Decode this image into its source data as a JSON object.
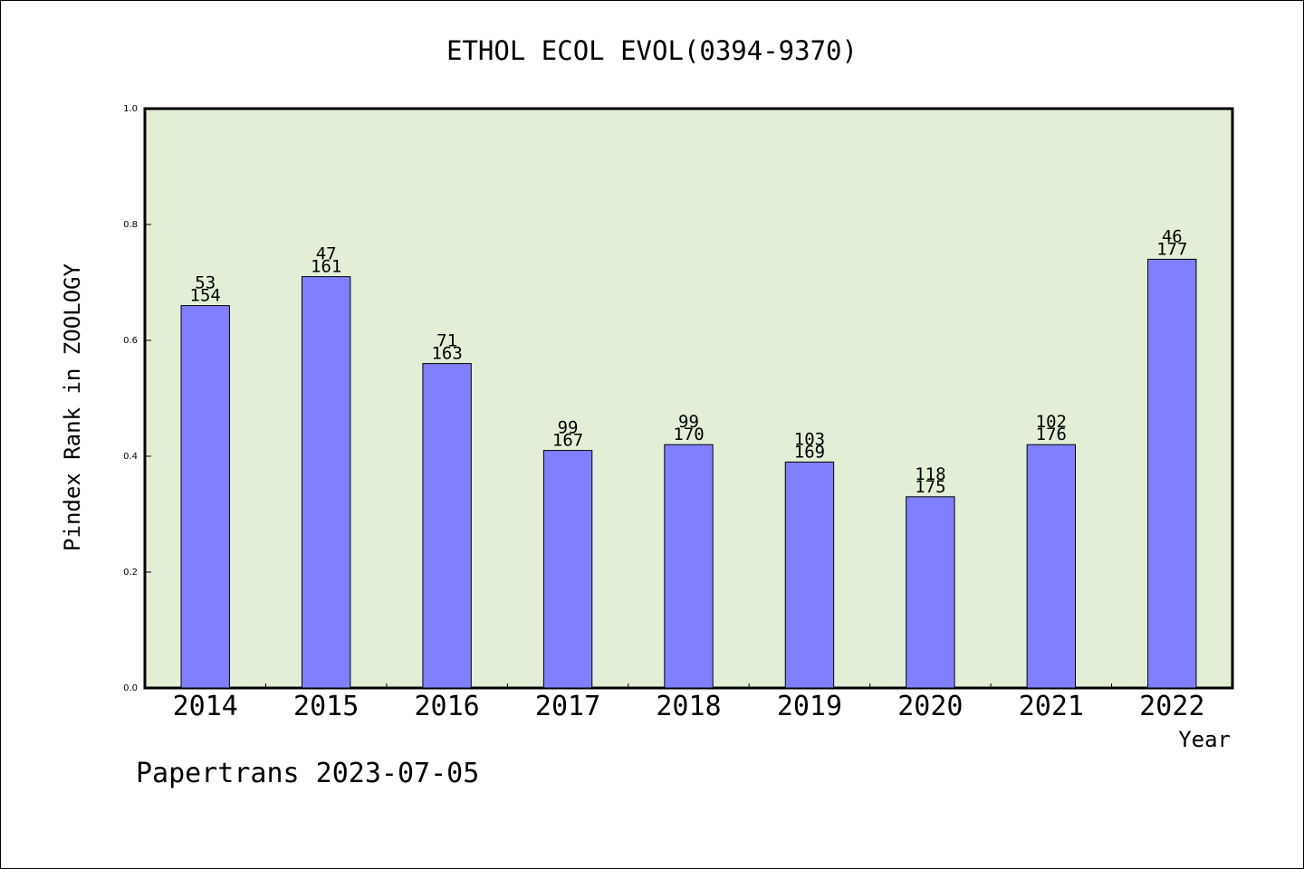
{
  "chart_data": {
    "type": "bar",
    "title": "ETHOL ECOL EVOL(0394-9370)",
    "xlabel": "Year",
    "ylabel": "Pindex Rank in ZOOLOGY",
    "categories": [
      "2014",
      "2015",
      "2016",
      "2017",
      "2018",
      "2019",
      "2020",
      "2021",
      "2022"
    ],
    "values": [
      0.66,
      0.71,
      0.56,
      0.41,
      0.42,
      0.39,
      0.33,
      0.42,
      0.74
    ],
    "rank_labels": [
      "53",
      "47",
      "71",
      "99",
      "99",
      "103",
      "118",
      "102",
      "46"
    ],
    "total_labels": [
      "154",
      "161",
      "163",
      "167",
      "170",
      "169",
      "175",
      "176",
      "177"
    ],
    "ylim": [
      0,
      1.0
    ],
    "yticks": [
      "0.0",
      "0.2",
      "0.4",
      "0.6",
      "0.8",
      "1.0"
    ],
    "grid": false,
    "colors": {
      "plot_background": "#e2efd6",
      "bar": "#8080ff"
    }
  },
  "footer": {
    "text": "Papertrans 2023-07-05"
  }
}
